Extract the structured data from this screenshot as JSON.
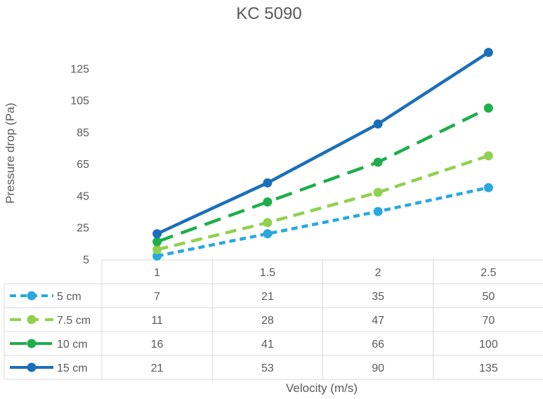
{
  "chart_data": {
    "type": "line",
    "title": "KC 5090",
    "xlabel": "Velocity (m/s)",
    "ylabel": "Pressure drop (Pa)",
    "categories": [
      "1",
      "1.5",
      "2",
      "2.5"
    ],
    "ylim": [
      5,
      145
    ],
    "yticks": [
      5,
      25,
      45,
      65,
      85,
      105,
      125
    ],
    "grid": false,
    "legend": "data-table",
    "series": [
      {
        "name": "5 cm",
        "values": [
          7,
          21,
          35,
          50
        ],
        "color": "#29a8e0",
        "dash": "dotted-dash"
      },
      {
        "name": "7.5 cm",
        "values": [
          11,
          28,
          47,
          70
        ],
        "color": "#92d050",
        "dash": "dash"
      },
      {
        "name": "10 cm",
        "values": [
          16,
          41,
          66,
          100
        ],
        "color": "#1fae4b",
        "dash": "long-dash"
      },
      {
        "name": "15 cm",
        "values": [
          21,
          53,
          90,
          135
        ],
        "color": "#1b6fba",
        "dash": "solid"
      }
    ]
  }
}
